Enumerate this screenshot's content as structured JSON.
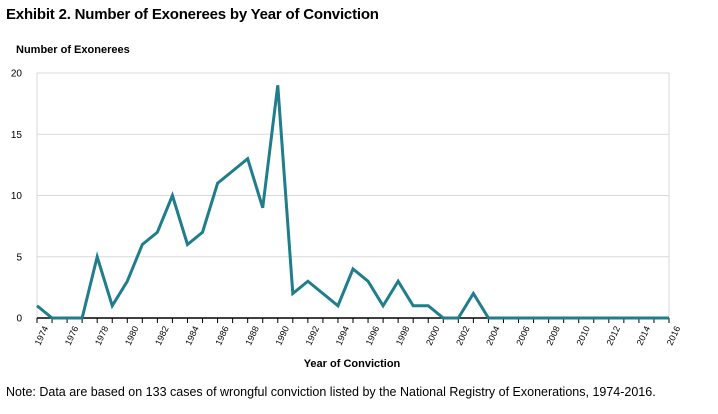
{
  "title": "Exhibit 2. Number of Exonerees by Year of Conviction",
  "note": "Note: Data are based on 133 cases of wrongful conviction listed by the National Registry of Exonerations, 1974-2016.",
  "colors": {
    "line": "#1f7d8c",
    "grid": "#d9d9d9",
    "axis": "#000000"
  },
  "chart_data": {
    "type": "line",
    "title": "Exhibit 2. Number of Exonerees by Year of Conviction",
    "xlabel": "Year of Conviction",
    "ylabel": "Number of Exonerees",
    "ylim": [
      0,
      20
    ],
    "xlim": [
      1974,
      2016
    ],
    "yticks": [
      0,
      5,
      10,
      15,
      20
    ],
    "xticks": [
      1974,
      1976,
      1978,
      1980,
      1982,
      1984,
      1986,
      1988,
      1990,
      1992,
      1994,
      1996,
      1998,
      2000,
      2002,
      2004,
      2006,
      2008,
      2010,
      2012,
      2014,
      2016
    ],
    "grid": true,
    "x": [
      1974,
      1975,
      1976,
      1977,
      1978,
      1979,
      1980,
      1981,
      1982,
      1983,
      1984,
      1985,
      1986,
      1987,
      1988,
      1989,
      1990,
      1991,
      1992,
      1993,
      1994,
      1995,
      1996,
      1997,
      1998,
      1999,
      2000,
      2001,
      2002,
      2003,
      2004,
      2005,
      2006,
      2007,
      2008,
      2009,
      2010,
      2011,
      2012,
      2013,
      2014,
      2015,
      2016
    ],
    "series": [
      {
        "values": [
          1,
          0,
          0,
          0,
          5,
          1,
          3,
          6,
          7,
          10,
          6,
          7,
          11,
          12,
          13,
          9,
          19,
          2,
          3,
          2,
          1,
          4,
          3,
          1,
          3,
          1,
          1,
          0,
          0,
          2,
          0,
          0,
          0,
          0,
          0,
          0,
          0,
          0,
          0,
          0,
          0,
          0,
          0
        ]
      }
    ]
  }
}
